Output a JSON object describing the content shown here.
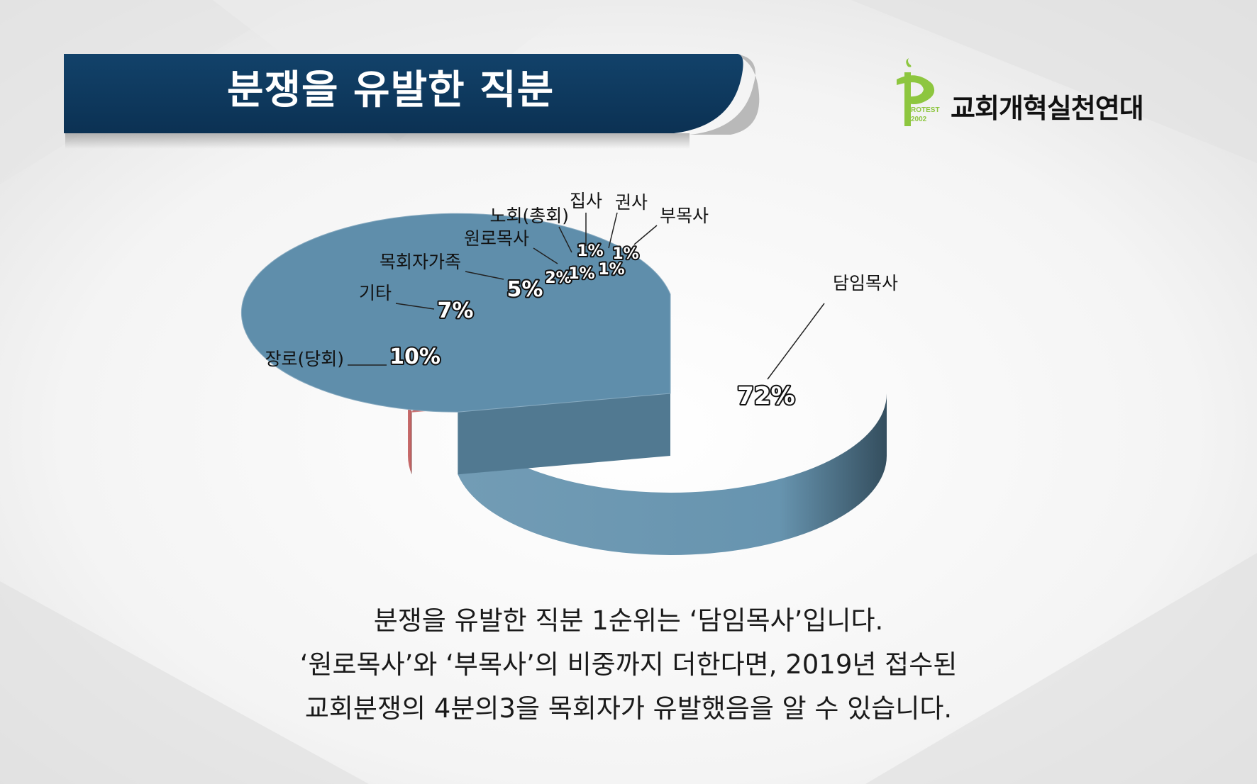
{
  "banner": {
    "title": "분쟁을 유발한 직분"
  },
  "logo": {
    "mark_line1": "ROTEST",
    "mark_line2": "2002",
    "name": "교회개혁실천연대"
  },
  "chart_data": {
    "type": "pie",
    "title": "분쟁을 유발한 직분",
    "slices": [
      {
        "label": "담임목사",
        "value": 72,
        "display": "72%",
        "color": "#5f8eab"
      },
      {
        "label": "장로(당회)",
        "value": 10,
        "display": "10%",
        "color": "#c05a5a"
      },
      {
        "label": "기타",
        "value": 7,
        "display": "7%",
        "color": "#c9a23b"
      },
      {
        "label": "목회자가족",
        "value": 5,
        "display": "5%",
        "color": "#7fa85a"
      },
      {
        "label": "원로목사",
        "value": 2,
        "display": "2%",
        "color": "#6a6aa8"
      },
      {
        "label": "노회(총회)",
        "value": 1,
        "display": "1%",
        "color": "#b8628d"
      },
      {
        "label": "집사",
        "value": 1,
        "display": "1%",
        "color": "#6fa3b8"
      },
      {
        "label": "권사",
        "value": 1,
        "display": "1%",
        "color": "#b26266"
      },
      {
        "label": "부목사",
        "value": 1,
        "display": "1%",
        "color": "#c9aa55"
      }
    ]
  },
  "caption": {
    "line1": "분쟁을 유발한 직분 1순위는 ‘담임목사’입니다.",
    "line2": "‘원로목사’와 ‘부목사’의 비중까지 더한다면, 2019년 접수된",
    "line3": "교회분쟁의 4분의3을 목회자가 유발했음을 알 수 있습니다."
  }
}
